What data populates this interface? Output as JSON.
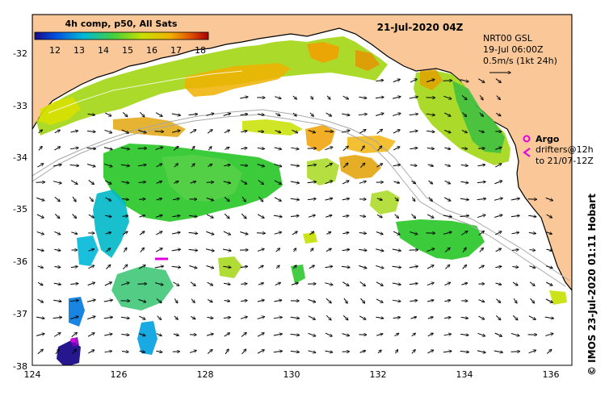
{
  "map": {
    "date_title": "21-Jul-2020 04Z",
    "credit": "© IMOS 23-Jul-2020 01:11 Hobart",
    "x_ticks": [
      "124",
      "126",
      "128",
      "130",
      "132",
      "134",
      "136"
    ],
    "y_ticks": [
      "-32",
      "-33",
      "-34",
      "-35",
      "-36",
      "-37",
      "-38"
    ],
    "lon_range": [
      124,
      136.5
    ],
    "lat_range": [
      -38.1,
      -31.4
    ],
    "colors": {
      "land": "#fac898",
      "background": "#ffffff",
      "coast": "#000000",
      "isobath": "#a8a8a8",
      "argo": "#e000e0",
      "drifter": "#e000e0",
      "sst_label_stops": [
        "#1b0b88",
        "#0050e0",
        "#00b8d8",
        "#40d040",
        "#c8e000",
        "#f0b000",
        "#e05000",
        "#a80000"
      ]
    }
  },
  "colorbar": {
    "title": "4h comp, p50, All Sats",
    "ticks": [
      "12",
      "13",
      "14",
      "15",
      "16",
      "17",
      "18"
    ],
    "range": [
      11.3,
      18.5
    ]
  },
  "legend": {
    "model": "NRT00 GSL",
    "time": "19-Jul 06:00Z",
    "scale": "0.5m/s (1kt 24h)",
    "argo_label": "Argo",
    "drifter_line1": "drifters@12h",
    "drifter_line2": "to 21/07-12Z"
  }
}
